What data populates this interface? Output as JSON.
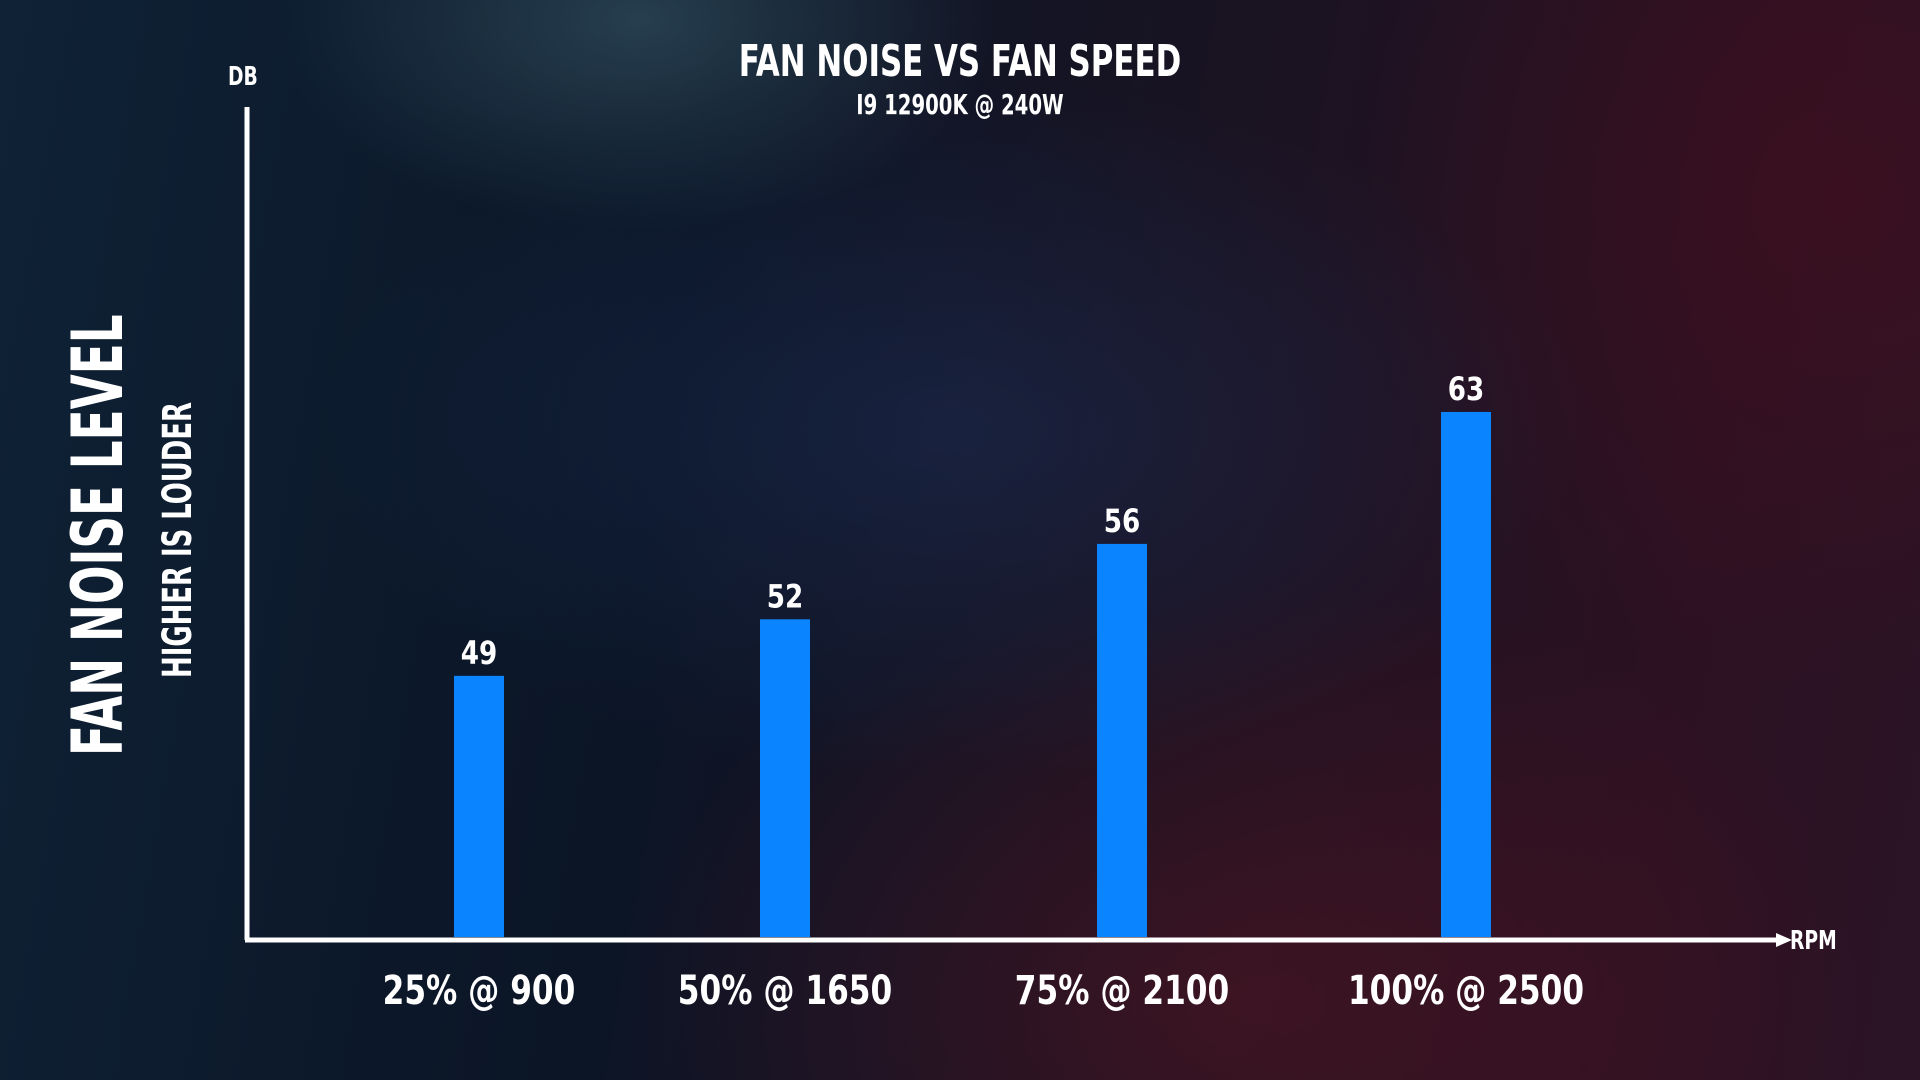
{
  "chart_data": {
    "type": "bar",
    "title": "FAN NOISE VS FAN SPEED",
    "subtitle": "I9 12900K @ 240W",
    "ylabel": "DB",
    "xlabel": "RPM",
    "side_title": "FAN NOISE LEVEL",
    "side_subtitle": "HIGHER IS LOUDER",
    "categories": [
      "25% @ 900",
      "50% @ 1650",
      "75% @ 2100",
      "100% @ 2500"
    ],
    "values": [
      49,
      52,
      56,
      63
    ],
    "bar_color": "#0a84ff",
    "axis_color": "#ffffff",
    "grid": false,
    "legend": "none"
  }
}
